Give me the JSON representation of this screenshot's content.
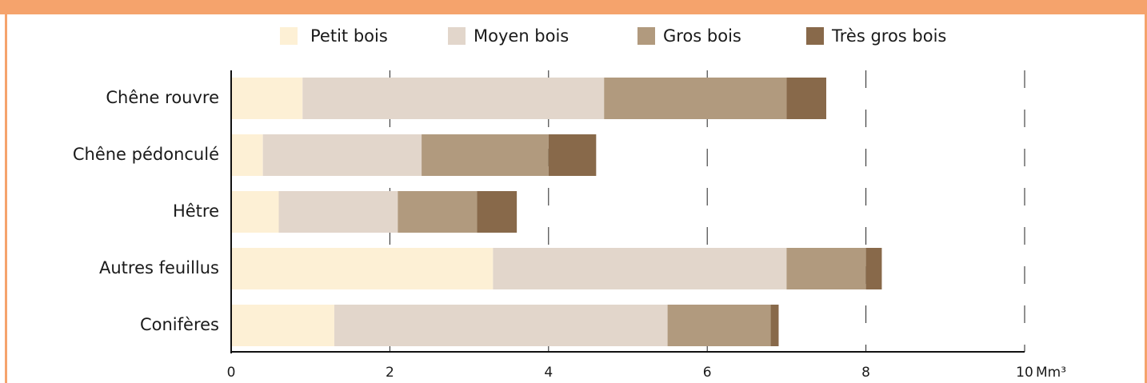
{
  "chart_data": {
    "type": "stacked-barh",
    "categories": [
      "Chêne rouvre",
      "Chêne pédonculé",
      "Hêtre",
      "Autres feuillus",
      "Conifères"
    ],
    "series": [
      {
        "name": "Petit bois",
        "color": "#fdf0d5",
        "values": [
          0.9,
          0.4,
          0.6,
          3.3,
          1.3
        ]
      },
      {
        "name": "Moyen bois",
        "color": "#e2d6cb",
        "values": [
          3.8,
          2.0,
          1.5,
          3.7,
          4.2
        ]
      },
      {
        "name": "Gros bois",
        "color": "#b19a7e",
        "values": [
          2.3,
          1.6,
          1.0,
          1.0,
          1.3
        ]
      },
      {
        "name": "Très gros bois",
        "color": "#88694a",
        "values": [
          0.5,
          0.6,
          0.5,
          0.2,
          0.1
        ]
      }
    ],
    "xlim": [
      0,
      10
    ],
    "xticks": [
      0,
      2,
      4,
      6,
      8,
      10
    ],
    "xlabel": "Mm³",
    "grid": true,
    "legend": "top"
  }
}
